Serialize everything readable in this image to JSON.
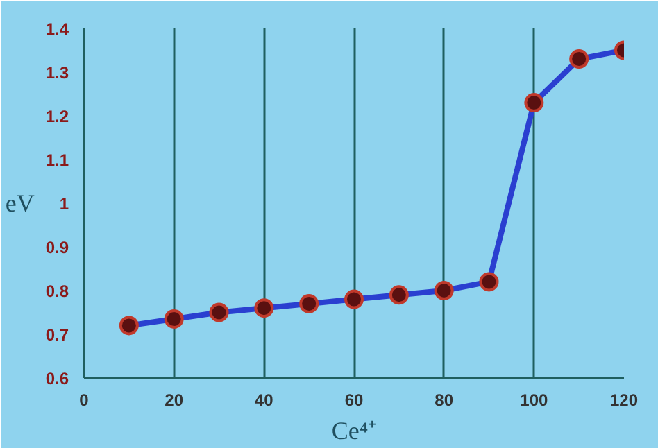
{
  "chart_data": {
    "type": "line",
    "xlabel": "Ce⁴⁺",
    "ylabel": "eV",
    "x": [
      10,
      20,
      30,
      40,
      50,
      60,
      70,
      80,
      90,
      100,
      110,
      120
    ],
    "series": [
      {
        "color": "#2a3fd0",
        "values": [
          0.72,
          0.735,
          0.75,
          0.76,
          0.77,
          0.78,
          0.79,
          0.8,
          0.82,
          1.23,
          1.33,
          1.35
        ]
      }
    ],
    "xlim": [
      0,
      120
    ],
    "xticks": [
      0,
      20,
      40,
      60,
      80,
      100,
      120
    ],
    "ylim": [
      0.6,
      1.4
    ],
    "yticks": [
      0.6,
      0.7,
      0.8,
      0.9,
      1,
      1.1,
      1.2,
      1.3,
      1.4
    ],
    "grid": "x",
    "marker": "circle",
    "line_style": "solid"
  }
}
